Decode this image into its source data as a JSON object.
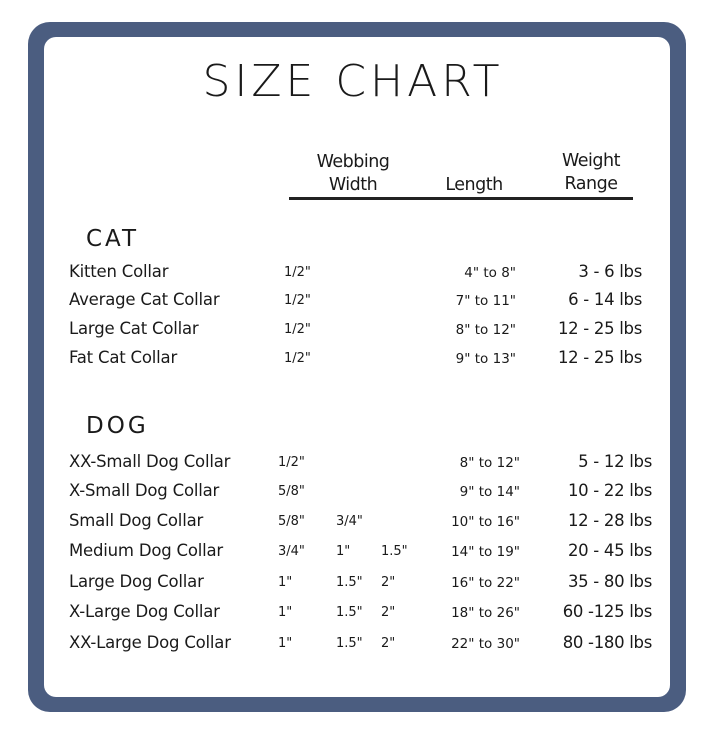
{
  "title": "SIZE CHART",
  "headers": {
    "webbing_width_line1": "Webbing",
    "webbing_width_line2": "Width",
    "length": "Length",
    "weight_range_line1": "Weight",
    "weight_range_line2": "Range"
  },
  "border_color": "#4b5d80",
  "sections": [
    {
      "name": "CAT",
      "rows": [
        {
          "label": "Kitten Collar",
          "widths": [
            "1/2\""
          ],
          "length": "4\" to 8\"",
          "weight": "3 - 6 lbs"
        },
        {
          "label": "Average Cat Collar",
          "widths": [
            "1/2\""
          ],
          "length": "7\" to 11\"",
          "weight": "6 - 14 lbs"
        },
        {
          "label": "Large Cat Collar",
          "widths": [
            "1/2\""
          ],
          "length": "8\" to 12\"",
          "weight": "12 - 25 lbs"
        },
        {
          "label": "Fat Cat Collar",
          "widths": [
            "1/2\""
          ],
          "length": "9\" to 13\"",
          "weight": "12 - 25 lbs"
        }
      ]
    },
    {
      "name": "DOG",
      "rows": [
        {
          "label": "XX-Small Dog Collar",
          "widths": [
            "1/2\""
          ],
          "length": "8\" to 12\"",
          "weight": "5 - 12 lbs"
        },
        {
          "label": "X-Small Dog Collar",
          "widths": [
            "5/8\""
          ],
          "length": "9\" to 14\"",
          "weight": "10 - 22 lbs"
        },
        {
          "label": "Small Dog Collar",
          "widths": [
            "5/8\"",
            "3/4\""
          ],
          "length": "10\" to 16\"",
          "weight": "12 - 28 lbs"
        },
        {
          "label": "Medium Dog Collar",
          "widths": [
            "3/4\"",
            "1\"",
            "1.5\""
          ],
          "length": "14\" to 19\"",
          "weight": "20 - 45 lbs"
        },
        {
          "label": "Large Dog Collar",
          "widths": [
            "1\"",
            "1.5\"",
            "2\""
          ],
          "length": "16\" to 22\"",
          "weight": "35 - 80 lbs"
        },
        {
          "label": "X-Large Dog Collar",
          "widths": [
            "1\"",
            "1.5\"",
            "2\""
          ],
          "length": "18\" to 26\"",
          "weight": "60 -125 lbs"
        },
        {
          "label": "XX-Large Dog Collar",
          "widths": [
            "1\"",
            "1.5\"",
            "2\""
          ],
          "length": "22\" to 30\"",
          "weight": "80 -180 lbs"
        }
      ]
    }
  ]
}
